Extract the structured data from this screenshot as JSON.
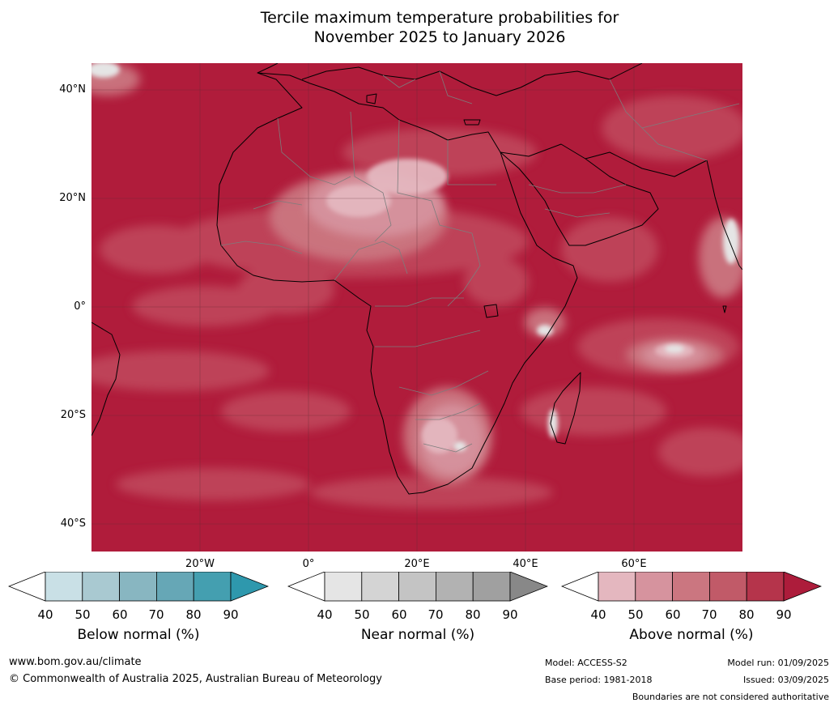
{
  "title": {
    "line1": "Tercile maximum temperature probabilities for",
    "line2": "November 2025 to January 2026"
  },
  "map": {
    "lat_labels": [
      "40°N",
      "20°N",
      "0°",
      "20°S",
      "40°S"
    ],
    "lon_labels": [
      "20°W",
      "0°",
      "20°E",
      "40°E",
      "60°E"
    ]
  },
  "legend": {
    "below": {
      "label": "Below normal (%)",
      "ticks": [
        "40",
        "50",
        "60",
        "70",
        "80",
        "90"
      ],
      "colors": [
        "#ffffff",
        "#c9e0e6",
        "#a9c9d1",
        "#88b6c1",
        "#66a7b6",
        "#449fb0",
        "#2e98ad"
      ]
    },
    "near": {
      "label": "Near normal (%)",
      "ticks": [
        "40",
        "50",
        "60",
        "70",
        "80",
        "90"
      ],
      "colors": [
        "#ffffff",
        "#e5e5e5",
        "#d4d4d4",
        "#c4c4c4",
        "#b2b2b2",
        "#a0a0a0",
        "#888888"
      ]
    },
    "above": {
      "label": "Above normal (%)",
      "ticks": [
        "40",
        "50",
        "60",
        "70",
        "80",
        "90"
      ],
      "colors": [
        "#ffffff",
        "#e4b7bf",
        "#d6939e",
        "#cb7680",
        "#c15a68",
        "#b5344b",
        "#ad1c3b"
      ]
    }
  },
  "footer": {
    "website": "www.bom.gov.au/climate",
    "copyright": "© Commonwealth of Australia 2025, Australian Bureau of Meteorology",
    "model": "Model: ACCESS-S2",
    "base_period": "Base period: 1981-2018",
    "model_run": "Model run: 01/09/2025",
    "issued": "Issued: 03/09/2025",
    "disclaimer": "Boundaries are not considered authoritative"
  }
}
